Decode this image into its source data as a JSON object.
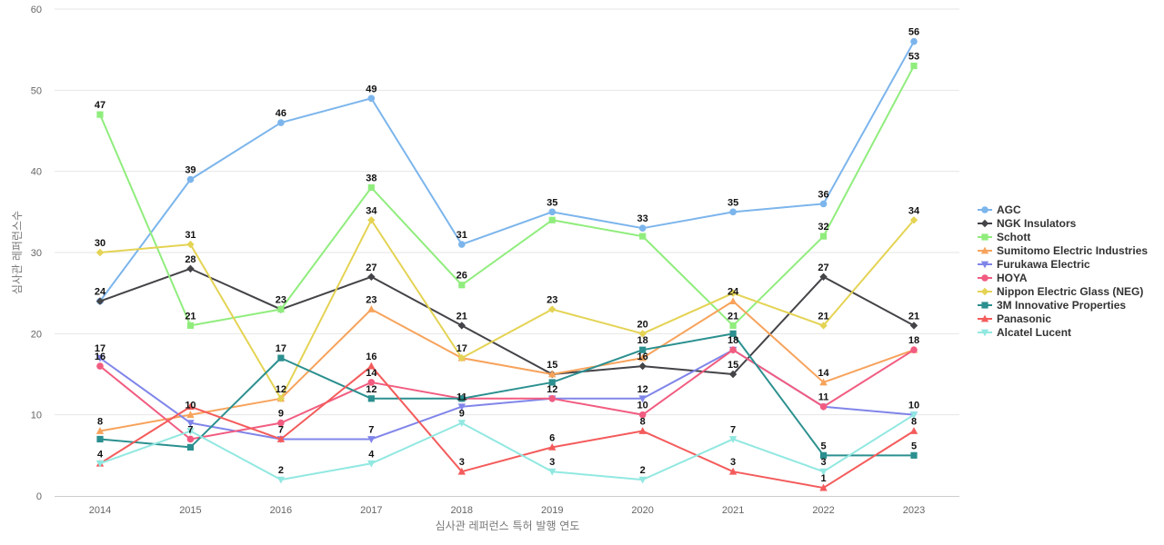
{
  "chart_data": {
    "type": "line",
    "title": "",
    "xlabel": "심사관 레퍼런스 특허 발행 연도",
    "ylabel": "심사관 레퍼런스수",
    "ylim": [
      0,
      60
    ],
    "yticks": [
      0,
      10,
      20,
      30,
      40,
      50,
      60
    ],
    "grid": true,
    "legend_position": "right",
    "categories": [
      "2014",
      "2015",
      "2016",
      "2017",
      "2018",
      "2019",
      "2020",
      "2021",
      "2022",
      "2023"
    ],
    "series": [
      {
        "name": "AGC",
        "color": "#7cb5ec",
        "marker": "circle",
        "values": [
          24,
          39,
          46,
          49,
          31,
          35,
          33,
          35,
          36,
          56
        ]
      },
      {
        "name": "NGK Insulators",
        "color": "#434348",
        "marker": "diamond",
        "values": [
          24,
          28,
          23,
          27,
          21,
          15,
          16,
          15,
          27,
          21
        ]
      },
      {
        "name": "Schott",
        "color": "#90ed7d",
        "marker": "square",
        "values": [
          47,
          21,
          23,
          38,
          26,
          34,
          32,
          21,
          32,
          53
        ]
      },
      {
        "name": "Sumitomo Electric Industries",
        "color": "#f7a35c",
        "marker": "triangle",
        "values": [
          8,
          10,
          12,
          23,
          17,
          15,
          17,
          24,
          14,
          18
        ]
      },
      {
        "name": "Furukawa Electric",
        "color": "#8085e9",
        "marker": "triangle-down",
        "values": [
          17,
          9,
          7,
          7,
          11,
          12,
          12,
          18,
          11,
          10
        ]
      },
      {
        "name": "HOYA",
        "color": "#f15c80",
        "marker": "circle",
        "values": [
          16,
          7,
          9,
          14,
          12,
          12,
          10,
          18,
          11,
          18
        ]
      },
      {
        "name": "Nippon Electric Glass (NEG)",
        "color": "#e4d354",
        "marker": "diamond",
        "values": [
          30,
          31,
          12,
          34,
          17,
          23,
          20,
          25,
          21,
          34
        ]
      },
      {
        "name": "3M Innovative Properties",
        "color": "#2b908f",
        "marker": "square",
        "values": [
          7,
          6,
          17,
          12,
          12,
          14,
          18,
          20,
          5,
          5
        ]
      },
      {
        "name": "Panasonic",
        "color": "#f45b5b",
        "marker": "triangle",
        "values": [
          4,
          11,
          7,
          16,
          3,
          6,
          8,
          3,
          1,
          8
        ]
      },
      {
        "name": "Alcatel Lucent",
        "color": "#91e8e1",
        "marker": "triangle-down",
        "values": [
          4,
          8,
          2,
          4,
          9,
          3,
          2,
          7,
          3,
          10
        ]
      }
    ],
    "data_labels": [
      {
        "category": "2014",
        "labels": [
          "47",
          "30",
          "24",
          "17",
          "16",
          "8",
          "4"
        ]
      },
      {
        "category": "2015",
        "labels": [
          "39",
          "31",
          "28",
          "21",
          "10",
          "7"
        ]
      },
      {
        "category": "2016",
        "labels": [
          "46",
          "23",
          "17",
          "12",
          "9",
          "7",
          "2"
        ]
      },
      {
        "category": "2017",
        "labels": [
          "49",
          "38",
          "34",
          "27",
          "23",
          "16",
          "14",
          "12",
          "7",
          "4"
        ]
      },
      {
        "category": "2018",
        "labels": [
          "31",
          "26",
          "21",
          "17",
          "11",
          "9",
          "3"
        ]
      },
      {
        "category": "2019",
        "labels": [
          "35",
          "23",
          "15",
          "12",
          "6",
          "3"
        ]
      },
      {
        "category": "2020",
        "labels": [
          "33",
          "20",
          "18",
          "16",
          "12",
          "10",
          "8",
          "2"
        ]
      },
      {
        "category": "2021",
        "labels": [
          "35",
          "24",
          "21",
          "18",
          "15",
          "7",
          "3"
        ]
      },
      {
        "category": "2022",
        "labels": [
          "36",
          "32",
          "27",
          "21",
          "14",
          "11",
          "5",
          "3",
          "1"
        ]
      },
      {
        "category": "2023",
        "labels": [
          "56",
          "53",
          "34",
          "21",
          "18",
          "10",
          "8",
          "5"
        ]
      }
    ]
  }
}
